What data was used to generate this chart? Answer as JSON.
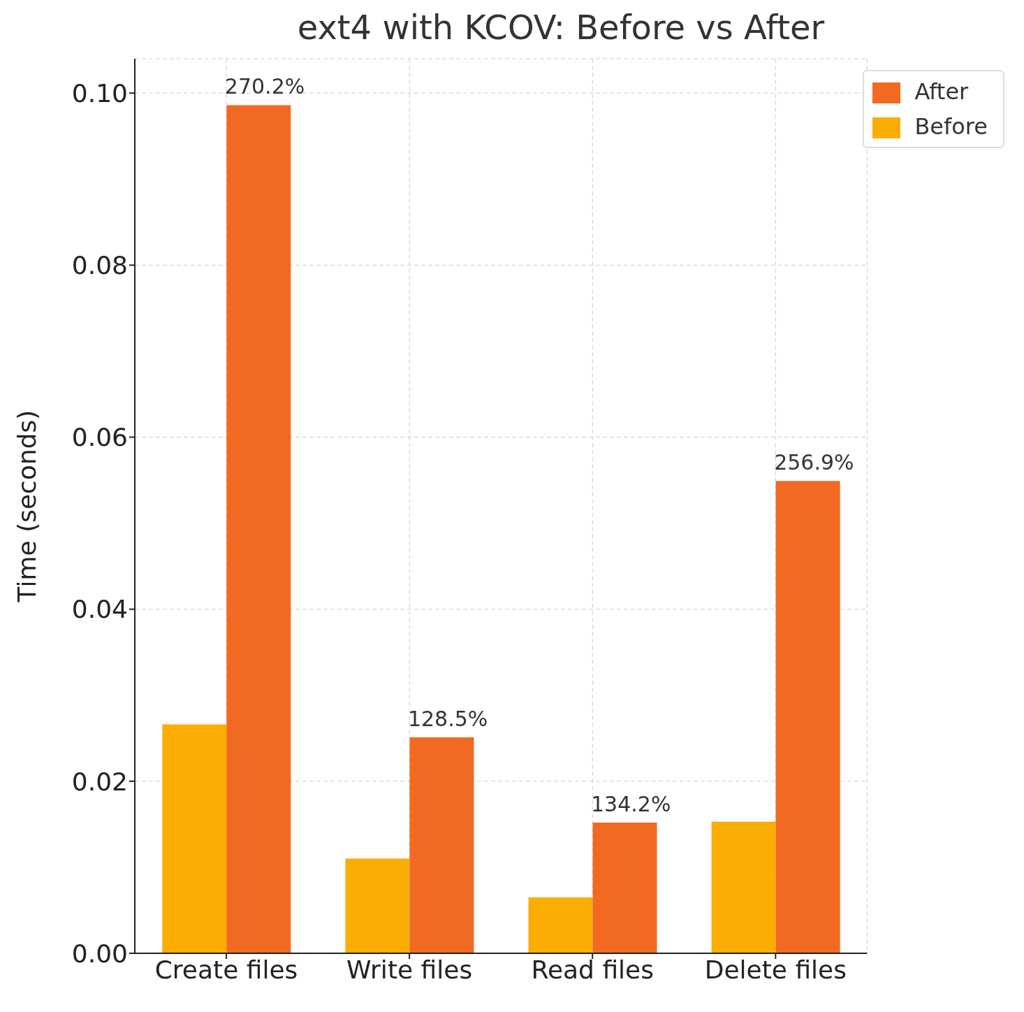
{
  "chart_data": {
    "type": "bar",
    "title": "ext4 with KCOV: Before vs After",
    "ylabel": "Time (seconds)",
    "categories": [
      "Create files",
      "Write files",
      "Read files",
      "Delete files"
    ],
    "series": [
      {
        "name": "Before",
        "color": "#fcad03",
        "values": [
          0.0266,
          0.011,
          0.0065,
          0.0153
        ]
      },
      {
        "name": "After",
        "color": "#f26922",
        "values": [
          0.0986,
          0.0251,
          0.0152,
          0.0549
        ]
      }
    ],
    "annotations": [
      {
        "text": "270.2%",
        "x": "Create files",
        "y": 0.0986
      },
      {
        "text": "128.5%",
        "x": "Write files",
        "y": 0.0251
      },
      {
        "text": "134.2%",
        "x": "Read files",
        "y": 0.0152
      },
      {
        "text": "256.9%",
        "x": "Delete files",
        "y": 0.0549
      }
    ],
    "ylim": [
      0,
      0.104
    ],
    "yticks": [
      {
        "value": 0,
        "label": "0.00"
      },
      {
        "value": 0.02,
        "label": "0.02"
      },
      {
        "value": 0.04,
        "label": "0.04"
      },
      {
        "value": 0.06,
        "label": "0.06"
      },
      {
        "value": 0.08,
        "label": "0.08"
      },
      {
        "value": 0.1,
        "label": "0.10"
      }
    ],
    "grid": true,
    "legend": "top right"
  }
}
